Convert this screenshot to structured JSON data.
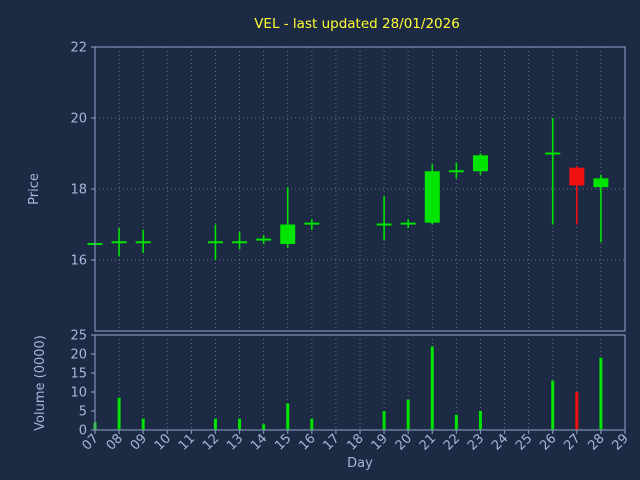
{
  "colors": {
    "background": "#1c2a44",
    "title": "#ffff33",
    "axis_text": "#a6b6dc",
    "spine": "#7e91b5",
    "grid": "#8b97ad",
    "up": "#00e400",
    "down": "#ef1010"
  },
  "chart_data": {
    "type": "candlestick",
    "title": "VEL - last updated 28/01/2026",
    "xlabel": "Day",
    "grid": "dotted",
    "xdomain": [
      7,
      29
    ],
    "xticks": [
      "07",
      "08",
      "09",
      "10",
      "11",
      "12",
      "13",
      "14",
      "15",
      "16",
      "17",
      "18",
      "19",
      "20",
      "21",
      "22",
      "23",
      "24",
      "25",
      "26",
      "27",
      "28",
      "29"
    ],
    "price_panel": {
      "ylabel": "Price",
      "ydomain": [
        14,
        22
      ],
      "yticks": [
        16,
        18,
        20,
        22
      ]
    },
    "volume_panel": {
      "ylabel": "Volume (0000)",
      "ydomain": [
        0,
        25
      ],
      "yticks": [
        0,
        5,
        10,
        15,
        20,
        25
      ]
    },
    "series": [
      {
        "day": 7,
        "label": "07",
        "open": 16.45,
        "high": 16.45,
        "low": 16.45,
        "close": 16.45,
        "volume": 2
      },
      {
        "day": 8,
        "label": "08",
        "open": 16.5,
        "high": 16.9,
        "low": 16.1,
        "close": 16.5,
        "volume": 8.5
      },
      {
        "day": 9,
        "label": "09",
        "open": 16.5,
        "high": 16.85,
        "low": 16.2,
        "close": 16.5,
        "volume": 3
      },
      {
        "day": 12,
        "label": "12",
        "open": 16.5,
        "high": 17.0,
        "low": 16.0,
        "close": 16.5,
        "volume": 3
      },
      {
        "day": 13,
        "label": "13",
        "open": 16.5,
        "high": 16.8,
        "low": 16.3,
        "close": 16.5,
        "volume": 3
      },
      {
        "day": 14,
        "label": "14",
        "open": 16.55,
        "high": 16.7,
        "low": 16.45,
        "close": 16.6,
        "volume": 1.5
      },
      {
        "day": 15,
        "label": "15",
        "open": 16.45,
        "high": 18.05,
        "low": 16.35,
        "close": 17.0,
        "volume": 7
      },
      {
        "day": 16,
        "label": "16",
        "open": 17.0,
        "high": 17.15,
        "low": 16.85,
        "close": 17.05,
        "volume": 3
      },
      {
        "day": 19,
        "label": "19",
        "open": 17.0,
        "high": 17.8,
        "low": 16.55,
        "close": 17.0,
        "volume": 5
      },
      {
        "day": 20,
        "label": "20",
        "open": 17.0,
        "high": 17.15,
        "low": 16.9,
        "close": 17.05,
        "volume": 8
      },
      {
        "day": 21,
        "label": "21",
        "open": 17.05,
        "high": 18.7,
        "low": 17.0,
        "close": 18.5,
        "volume": 22
      },
      {
        "day": 22,
        "label": "22",
        "open": 18.5,
        "high": 18.75,
        "low": 18.3,
        "close": 18.5,
        "volume": 4
      },
      {
        "day": 23,
        "label": "23",
        "open": 18.5,
        "high": 19.0,
        "low": 18.4,
        "close": 18.95,
        "volume": 5
      },
      {
        "day": 26,
        "label": "26",
        "open": 19.0,
        "high": 20.0,
        "low": 17.0,
        "close": 19.0,
        "volume": 13
      },
      {
        "day": 27,
        "label": "27",
        "open": 18.6,
        "high": 18.65,
        "low": 17.0,
        "close": 18.1,
        "volume": 10
      },
      {
        "day": 28,
        "label": "28",
        "open": 18.05,
        "high": 18.4,
        "low": 16.5,
        "close": 18.3,
        "volume": 19
      }
    ]
  }
}
